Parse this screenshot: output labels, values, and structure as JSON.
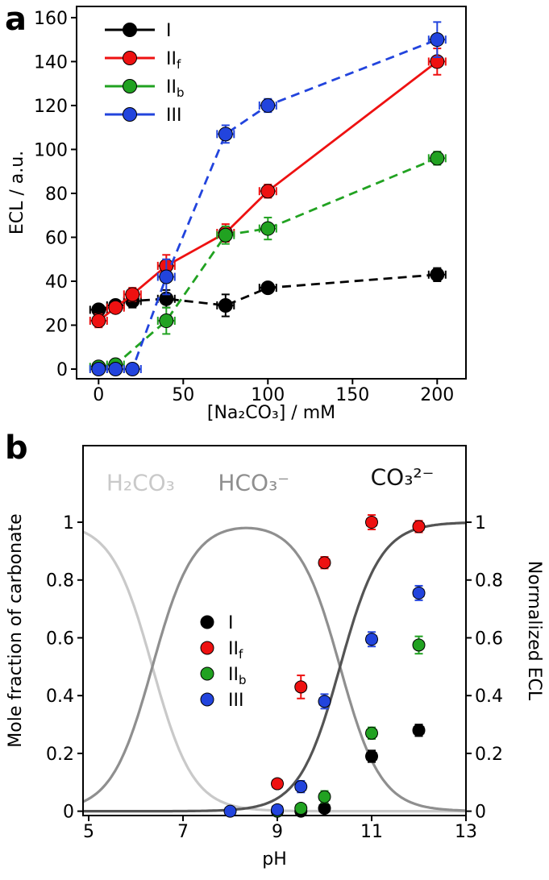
{
  "figure": {
    "panels": [
      {
        "id": "a",
        "label": "a"
      },
      {
        "id": "b",
        "label": "b"
      }
    ]
  },
  "chart_data": [
    {
      "panel": "a",
      "type": "scatter",
      "xlabel": "[Na₂CO₃] / mM",
      "ylabel": "ECL / a.u.",
      "xlim": [
        -13,
        217
      ],
      "ylim": [
        -4.4,
        165.1
      ],
      "xticks": [
        0,
        50,
        100,
        150,
        200
      ],
      "yticks": [
        0,
        20,
        40,
        60,
        80,
        100,
        120,
        140,
        160
      ],
      "series": [
        {
          "label": "I",
          "color": "#000000",
          "line": "dashed",
          "x": [
            0,
            10,
            20,
            40,
            75,
            100,
            200
          ],
          "y": [
            27,
            29,
            31,
            32,
            29,
            37,
            43
          ],
          "yerr": [
            2,
            2,
            3,
            4,
            5,
            2,
            3
          ],
          "xerr": 5
        },
        {
          "label": "II_f",
          "color": "#ee1111",
          "line": "solid",
          "x": [
            0,
            10,
            20,
            40,
            75,
            100,
            200
          ],
          "y": [
            22,
            28,
            34,
            47,
            62,
            81,
            140
          ],
          "yerr": [
            3,
            2,
            3,
            5,
            4,
            3,
            6
          ],
          "xerr": 5
        },
        {
          "label": "II_b",
          "color": "#21a221",
          "line": "dashed",
          "x": [
            0,
            10,
            40,
            75,
            100,
            200
          ],
          "y": [
            1,
            2,
            22,
            61,
            64,
            96
          ],
          "yerr": [
            2,
            2,
            6,
            4,
            5,
            3
          ],
          "xerr": 5
        },
        {
          "label": "III",
          "color": "#2244dd",
          "line": "dashed",
          "x": [
            0,
            10,
            20,
            40,
            75,
            100,
            200
          ],
          "y": [
            0,
            0,
            0,
            42,
            107,
            120,
            150
          ],
          "yerr": [
            1,
            1,
            1,
            8,
            4,
            3,
            8
          ],
          "xerr": 5
        }
      ],
      "legend": [
        "I",
        "II_f",
        "II_b",
        "III"
      ]
    },
    {
      "panel": "b",
      "type": "line+scatter",
      "xlabel": "pH",
      "ylabel": "Mole fraction of carbonate",
      "ylabel_right": "Normalized ECL",
      "xlim": [
        4.88,
        13.0
      ],
      "ylim": [
        -0.015,
        1.265
      ],
      "xticks": [
        5,
        7,
        9,
        11,
        13
      ],
      "yticks": [
        0,
        0.2,
        0.4,
        0.6,
        0.8,
        1.0
      ],
      "speciation": {
        "pKa1": 6.35,
        "pKa2": 10.33,
        "curves": [
          {
            "species": "H2CO3",
            "label": "H₂CO₃",
            "color": "#c9c9c9",
            "label_x": 6.1,
            "label_y": 1.11,
            "label_color": "#c9c9c9"
          },
          {
            "species": "HCO3",
            "label": "HCO₃⁻",
            "color": "#8f8f8f",
            "label_x": 8.5,
            "label_y": 1.11,
            "label_color": "#8f8f8f"
          },
          {
            "species": "CO3",
            "label": "CO₃²⁻",
            "color": "#545454",
            "label_x": 11.65,
            "label_y": 1.13,
            "label_color": "#111111"
          }
        ]
      },
      "series": [
        {
          "label": "I",
          "color": "#000000",
          "line": "none",
          "x": [
            9,
            9.5,
            10,
            11,
            12
          ],
          "y": [
            0.0,
            0.0,
            0.01,
            0.19,
            0.28
          ],
          "yerr": [
            0.01,
            0.01,
            0.01,
            0.02,
            0.02
          ],
          "xerr": 0.1
        },
        {
          "label": "II_f",
          "color": "#ee1111",
          "line": "none",
          "x": [
            9,
            9.5,
            10,
            11,
            12
          ],
          "y": [
            0.095,
            0.43,
            0.86,
            1.0,
            0.985
          ],
          "yerr": [
            0.015,
            0.04,
            0.02,
            0.025,
            0.02
          ],
          "xerr": 0.1
        },
        {
          "label": "II_b",
          "color": "#21a221",
          "line": "none",
          "x": [
            9,
            9.5,
            10,
            11,
            12
          ],
          "y": [
            0.0,
            0.01,
            0.05,
            0.27,
            0.575
          ],
          "yerr": [
            0.01,
            0.01,
            0.02,
            0.02,
            0.03
          ],
          "xerr": 0.1
        },
        {
          "label": "III",
          "color": "#2244dd",
          "line": "none",
          "x": [
            8,
            9,
            9.5,
            10,
            11,
            12
          ],
          "y": [
            0.0,
            0.005,
            0.085,
            0.38,
            0.595,
            0.755
          ],
          "yerr": [
            0.01,
            0.01,
            0.02,
            0.025,
            0.025,
            0.025
          ],
          "xerr": 0.1
        }
      ],
      "legend": [
        "I",
        "II_f",
        "II_b",
        "III"
      ]
    }
  ]
}
